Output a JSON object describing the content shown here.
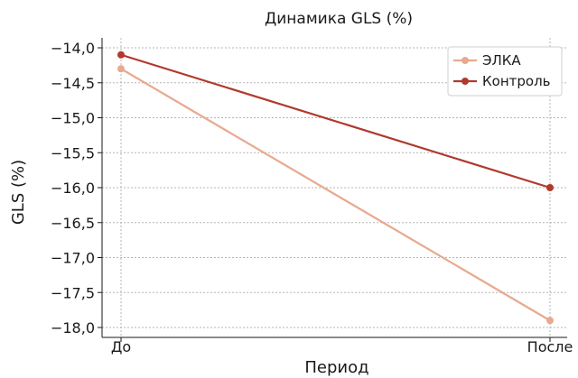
{
  "chart_data": {
    "type": "line",
    "title": "Динамика GLS (%)",
    "xlabel": "Период",
    "ylabel": "GLS (%)",
    "categories": [
      "До",
      "После"
    ],
    "series": [
      {
        "name": "ЭЛКА",
        "values": [
          -14.3,
          -17.9
        ],
        "color": "#e8a98f"
      },
      {
        "name": "Контроль",
        "values": [
          -14.1,
          -16.0
        ],
        "color": "#b03a2e"
      }
    ],
    "ylim": [
      -18.0,
      -14.0
    ],
    "yticks": [
      -14.0,
      -14.5,
      -15.0,
      -15.5,
      -16.0,
      -16.5,
      -17.0,
      -17.5,
      -18.0
    ],
    "ytick_labels": [
      "−14,0",
      "−14,5",
      "−15,0",
      "−15,5",
      "−16,0",
      "−16,5",
      "−17,0",
      "−17,5",
      "−18,0"
    ],
    "grid": true,
    "legend": "top-right"
  }
}
